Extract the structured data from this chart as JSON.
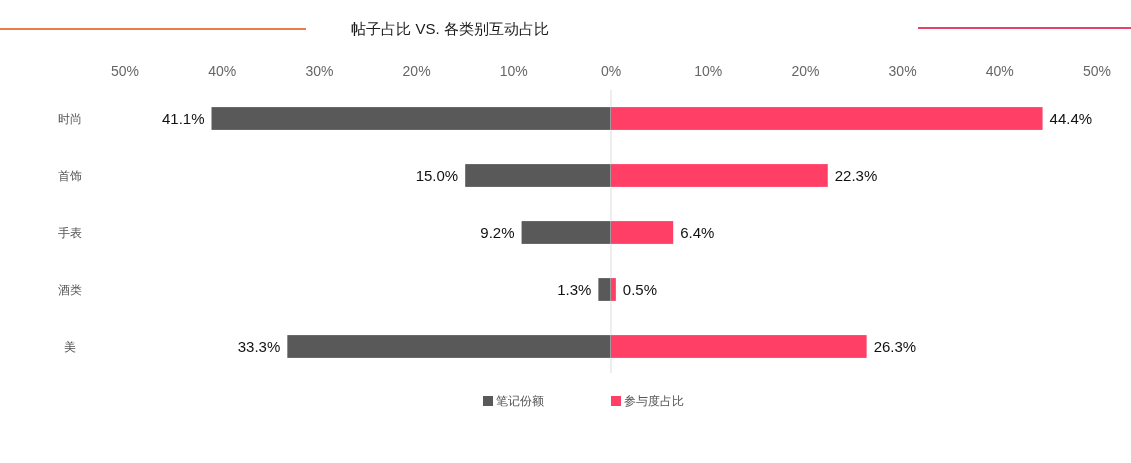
{
  "chart_data": [
    {
      "type": "bar",
      "orientation": "horizontal",
      "title": "帖子占比 VS. 各类别互动占比",
      "categories": [
        "时尚",
        "首饰",
        "手表",
        "酒类",
        "美"
      ],
      "series": [
        {
          "name": "笔记份额",
          "color": "#595959",
          "values": [
            41.1,
            15.0,
            9.2,
            1.3,
            33.3
          ],
          "value_labels": [
            "41.1%",
            "15.0%",
            "9.2%",
            "1.3%",
            "33.3%"
          ]
        }
      ],
      "xlim": [
        50,
        0
      ],
      "xticks": [
        {
          "value": 50,
          "label": "50%"
        },
        {
          "value": 40,
          "label": "40%"
        },
        {
          "value": 30,
          "label": "30%"
        },
        {
          "value": 20,
          "label": "20%"
        },
        {
          "value": 10,
          "label": "10%"
        },
        {
          "value": 0,
          "label": "0%"
        }
      ],
      "legend": "bottom"
    },
    {
      "type": "bar",
      "orientation": "horizontal",
      "categories": [
        null,
        null,
        null,
        null,
        null
      ],
      "series": [
        {
          "name": "参与度占比",
          "color": "#ff3f66",
          "values": [
            44.4,
            22.3,
            6.4,
            0.5,
            26.3
          ],
          "value_labels": [
            "44.4%",
            "22.3%",
            "6.4%",
            "0.5%",
            "26.3%"
          ]
        }
      ],
      "xlim": [
        0,
        50
      ],
      "xticks": [
        {
          "value": 10,
          "label": "10%"
        },
        {
          "value": 20,
          "label": "20%"
        },
        {
          "value": 30,
          "label": "30%"
        },
        {
          "value": 40,
          "label": "40%"
        },
        {
          "value": 50,
          "label": "50%"
        }
      ],
      "legend": "bottom"
    }
  ]
}
